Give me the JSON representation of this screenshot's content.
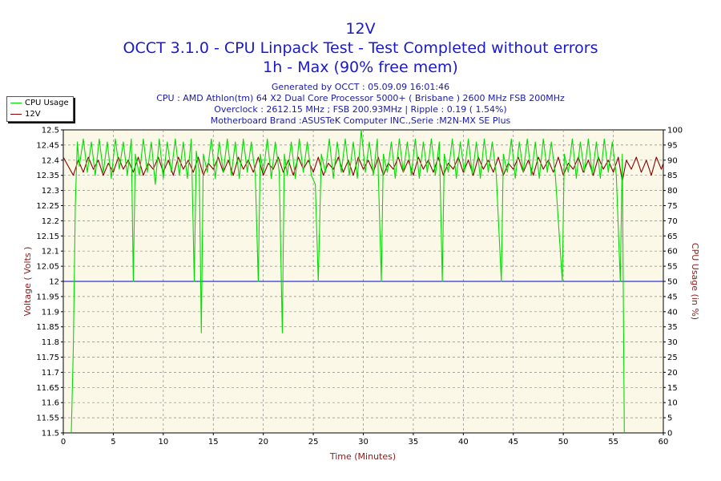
{
  "chart_data": {
    "type": "line",
    "title": "12V",
    "subtitle_lines": [
      "OCCT 3.1.0 - CPU Linpack Test - Test Completed without errors",
      "1h - Max (90% free mem)"
    ],
    "info_lines": [
      "Generated by OCCT : 05.09.09 16:01:46",
      "CPU : AMD Athlon(tm) 64 X2 Dual Core Processor 5000+ ( Brisbane ) 2600 MHz FSB 200MHz",
      "Overclock : 2612.15 MHz ; FSB 200.93MHz | Ripple : 0.19 ( 1.54%)",
      "Motherboard Brand :ASUSTeK Computer INC.,Serie :M2N-MX SE Plus"
    ],
    "xlabel": "Time (Minutes)",
    "ylabel": "Voltage ( Volts )",
    "y2label": "CPU Usage (in %)",
    "xlim": [
      0,
      60
    ],
    "ylim": [
      11.5,
      12.5
    ],
    "y2lim": [
      0,
      100
    ],
    "x_ticks": [
      0,
      5,
      10,
      15,
      20,
      25,
      30,
      35,
      40,
      45,
      50,
      55,
      60
    ],
    "y_ticks": [
      "11.5",
      "11.55",
      "11.6",
      "11.65",
      "11.7",
      "11.75",
      "11.8",
      "11.85",
      "11.9",
      "11.95",
      "12",
      "12.05",
      "12.1",
      "12.15",
      "12.2",
      "12.25",
      "12.3",
      "12.35",
      "12.4",
      "12.45",
      "12.5"
    ],
    "y2_ticks": [
      "0",
      "5",
      "10",
      "15",
      "20",
      "25",
      "30",
      "35",
      "40",
      "45",
      "50",
      "55",
      "60",
      "65",
      "70",
      "75",
      "80",
      "85",
      "90",
      "95",
      "100"
    ],
    "grid": true,
    "legend_position": "top-left",
    "reference_line": {
      "axis": "y",
      "value": 12.0
    },
    "series": [
      {
        "name": "CPU Usage",
        "axis": "right",
        "color": "#00dd00",
        "points": [
          [
            0.8,
            0
          ],
          [
            1.0,
            28
          ],
          [
            1.2,
            75
          ],
          [
            1.4,
            96
          ],
          [
            1.6,
            88
          ],
          [
            2.0,
            97
          ],
          [
            2.4,
            86
          ],
          [
            2.8,
            96
          ],
          [
            3.2,
            85
          ],
          [
            3.6,
            97
          ],
          [
            4.0,
            86
          ],
          [
            4.4,
            96
          ],
          [
            4.8,
            84
          ],
          [
            5.2,
            97
          ],
          [
            5.6,
            87
          ],
          [
            6.0,
            96
          ],
          [
            6.4,
            85
          ],
          [
            6.8,
            97
          ],
          [
            7.0,
            50
          ],
          [
            7.2,
            92
          ],
          [
            7.6,
            85
          ],
          [
            8.0,
            97
          ],
          [
            8.4,
            86
          ],
          [
            8.8,
            96
          ],
          [
            9.2,
            82
          ],
          [
            9.6,
            97
          ],
          [
            10.0,
            84
          ],
          [
            10.4,
            96
          ],
          [
            10.8,
            86
          ],
          [
            11.2,
            97
          ],
          [
            11.6,
            85
          ],
          [
            12.0,
            96
          ],
          [
            12.4,
            84
          ],
          [
            12.8,
            97
          ],
          [
            13.1,
            50
          ],
          [
            13.3,
            93
          ],
          [
            13.6,
            86
          ],
          [
            13.8,
            33
          ],
          [
            14.0,
            92
          ],
          [
            14.4,
            86
          ],
          [
            14.8,
            97
          ],
          [
            15.2,
            84
          ],
          [
            15.6,
            96
          ],
          [
            16.0,
            86
          ],
          [
            16.4,
            97
          ],
          [
            16.8,
            85
          ],
          [
            17.2,
            96
          ],
          [
            17.6,
            84
          ],
          [
            18.0,
            97
          ],
          [
            18.4,
            86
          ],
          [
            18.8,
            96
          ],
          [
            19.2,
            85
          ],
          [
            19.5,
            50
          ],
          [
            19.7,
            92
          ],
          [
            20.0,
            86
          ],
          [
            20.4,
            97
          ],
          [
            20.8,
            84
          ],
          [
            21.2,
            96
          ],
          [
            21.6,
            86
          ],
          [
            21.9,
            33
          ],
          [
            22.1,
            92
          ],
          [
            22.4,
            85
          ],
          [
            22.8,
            96
          ],
          [
            23.2,
            84
          ],
          [
            23.6,
            97
          ],
          [
            24.0,
            86
          ],
          [
            24.4,
            96
          ],
          [
            24.8,
            85
          ],
          [
            25.2,
            82
          ],
          [
            25.5,
            50
          ],
          [
            25.8,
            92
          ],
          [
            26.2,
            86
          ],
          [
            26.6,
            97
          ],
          [
            27.0,
            84
          ],
          [
            27.4,
            96
          ],
          [
            27.8,
            86
          ],
          [
            28.2,
            97
          ],
          [
            28.6,
            85
          ],
          [
            29.0,
            96
          ],
          [
            29.4,
            84
          ],
          [
            29.8,
            100
          ],
          [
            30.2,
            86
          ],
          [
            30.6,
            96
          ],
          [
            31.0,
            85
          ],
          [
            31.4,
            97
          ],
          [
            31.8,
            50
          ],
          [
            32.0,
            92
          ],
          [
            32.4,
            86
          ],
          [
            32.8,
            96
          ],
          [
            33.2,
            84
          ],
          [
            33.6,
            97
          ],
          [
            34.0,
            86
          ],
          [
            34.4,
            96
          ],
          [
            34.8,
            85
          ],
          [
            35.2,
            97
          ],
          [
            35.6,
            84
          ],
          [
            36.0,
            96
          ],
          [
            36.4,
            86
          ],
          [
            36.8,
            97
          ],
          [
            37.2,
            85
          ],
          [
            37.6,
            96
          ],
          [
            37.9,
            50
          ],
          [
            38.1,
            92
          ],
          [
            38.5,
            86
          ],
          [
            38.9,
            97
          ],
          [
            39.3,
            84
          ],
          [
            39.7,
            96
          ],
          [
            40.1,
            86
          ],
          [
            40.5,
            97
          ],
          [
            40.9,
            85
          ],
          [
            41.3,
            96
          ],
          [
            41.7,
            84
          ],
          [
            42.1,
            97
          ],
          [
            42.5,
            86
          ],
          [
            42.9,
            96
          ],
          [
            43.3,
            85
          ],
          [
            43.8,
            50
          ],
          [
            44.0,
            92
          ],
          [
            44.4,
            86
          ],
          [
            44.8,
            97
          ],
          [
            45.2,
            84
          ],
          [
            45.6,
            96
          ],
          [
            46.0,
            86
          ],
          [
            46.4,
            97
          ],
          [
            46.8,
            85
          ],
          [
            47.2,
            96
          ],
          [
            47.6,
            84
          ],
          [
            48.0,
            97
          ],
          [
            48.4,
            86
          ],
          [
            48.8,
            96
          ],
          [
            49.2,
            85
          ],
          [
            49.9,
            50
          ],
          [
            50.1,
            92
          ],
          [
            50.5,
            86
          ],
          [
            50.9,
            97
          ],
          [
            51.3,
            84
          ],
          [
            51.7,
            96
          ],
          [
            52.1,
            86
          ],
          [
            52.5,
            97
          ],
          [
            52.9,
            85
          ],
          [
            53.3,
            96
          ],
          [
            53.7,
            84
          ],
          [
            54.1,
            97
          ],
          [
            54.5,
            86
          ],
          [
            54.9,
            96
          ],
          [
            55.3,
            85
          ],
          [
            55.7,
            50
          ],
          [
            55.9,
            92
          ],
          [
            56.1,
            0
          ]
        ]
      },
      {
        "name": "12V",
        "axis": "left",
        "color": "#8b0000",
        "points": [
          [
            0,
            12.41
          ],
          [
            0.5,
            12.38
          ],
          [
            1.0,
            12.35
          ],
          [
            1.5,
            12.4
          ],
          [
            2.0,
            12.36
          ],
          [
            2.5,
            12.41
          ],
          [
            3.0,
            12.37
          ],
          [
            3.5,
            12.4
          ],
          [
            4.0,
            12.35
          ],
          [
            4.5,
            12.39
          ],
          [
            5.0,
            12.36
          ],
          [
            5.5,
            12.41
          ],
          [
            6.0,
            12.37
          ],
          [
            6.5,
            12.4
          ],
          [
            7.0,
            12.36
          ],
          [
            7.5,
            12.41
          ],
          [
            8.0,
            12.35
          ],
          [
            8.5,
            12.39
          ],
          [
            9.0,
            12.37
          ],
          [
            9.5,
            12.41
          ],
          [
            10.0,
            12.36
          ],
          [
            10.5,
            12.4
          ],
          [
            11.0,
            12.35
          ],
          [
            11.5,
            12.41
          ],
          [
            12.0,
            12.37
          ],
          [
            12.5,
            12.4
          ],
          [
            13.0,
            12.36
          ],
          [
            13.5,
            12.41
          ],
          [
            14.0,
            12.35
          ],
          [
            14.5,
            12.39
          ],
          [
            15.0,
            12.37
          ],
          [
            15.5,
            12.41
          ],
          [
            16.0,
            12.36
          ],
          [
            16.5,
            12.4
          ],
          [
            17.0,
            12.35
          ],
          [
            17.5,
            12.41
          ],
          [
            18.0,
            12.37
          ],
          [
            18.5,
            12.4
          ],
          [
            19.0,
            12.36
          ],
          [
            19.5,
            12.41
          ],
          [
            20.0,
            12.35
          ],
          [
            20.5,
            12.39
          ],
          [
            21.0,
            12.37
          ],
          [
            21.5,
            12.41
          ],
          [
            22.0,
            12.36
          ],
          [
            22.5,
            12.4
          ],
          [
            23.0,
            12.35
          ],
          [
            23.5,
            12.41
          ],
          [
            24.0,
            12.37
          ],
          [
            24.5,
            12.4
          ],
          [
            25.0,
            12.36
          ],
          [
            25.5,
            12.41
          ],
          [
            26.0,
            12.35
          ],
          [
            26.5,
            12.39
          ],
          [
            27.0,
            12.37
          ],
          [
            27.5,
            12.41
          ],
          [
            28.0,
            12.36
          ],
          [
            28.5,
            12.4
          ],
          [
            29.0,
            12.35
          ],
          [
            29.5,
            12.41
          ],
          [
            30.0,
            12.37
          ],
          [
            30.5,
            12.4
          ],
          [
            31.0,
            12.36
          ],
          [
            31.5,
            12.41
          ],
          [
            32.0,
            12.35
          ],
          [
            32.5,
            12.39
          ],
          [
            33.0,
            12.37
          ],
          [
            33.5,
            12.41
          ],
          [
            34.0,
            12.36
          ],
          [
            34.5,
            12.4
          ],
          [
            35.0,
            12.35
          ],
          [
            35.5,
            12.41
          ],
          [
            36.0,
            12.37
          ],
          [
            36.5,
            12.4
          ],
          [
            37.0,
            12.36
          ],
          [
            37.5,
            12.41
          ],
          [
            38.0,
            12.35
          ],
          [
            38.5,
            12.39
          ],
          [
            39.0,
            12.37
          ],
          [
            39.5,
            12.41
          ],
          [
            40.0,
            12.36
          ],
          [
            40.5,
            12.4
          ],
          [
            41.0,
            12.35
          ],
          [
            41.5,
            12.41
          ],
          [
            42.0,
            12.37
          ],
          [
            42.5,
            12.4
          ],
          [
            43.0,
            12.36
          ],
          [
            43.5,
            12.41
          ],
          [
            44.0,
            12.35
          ],
          [
            44.5,
            12.39
          ],
          [
            45.0,
            12.37
          ],
          [
            45.5,
            12.41
          ],
          [
            46.0,
            12.36
          ],
          [
            46.5,
            12.4
          ],
          [
            47.0,
            12.35
          ],
          [
            47.5,
            12.41
          ],
          [
            48.0,
            12.37
          ],
          [
            48.5,
            12.4
          ],
          [
            49.0,
            12.36
          ],
          [
            49.5,
            12.41
          ],
          [
            50.0,
            12.35
          ],
          [
            50.5,
            12.39
          ],
          [
            51.0,
            12.37
          ],
          [
            51.5,
            12.41
          ],
          [
            52.0,
            12.36
          ],
          [
            52.5,
            12.4
          ],
          [
            53.0,
            12.35
          ],
          [
            53.5,
            12.41
          ],
          [
            54.0,
            12.37
          ],
          [
            54.5,
            12.4
          ],
          [
            55.0,
            12.36
          ],
          [
            55.5,
            12.41
          ],
          [
            55.9,
            12.33
          ],
          [
            56.3,
            12.4
          ],
          [
            56.8,
            12.37
          ],
          [
            57.3,
            12.41
          ],
          [
            57.8,
            12.36
          ],
          [
            58.3,
            12.4
          ],
          [
            58.8,
            12.35
          ],
          [
            59.3,
            12.41
          ],
          [
            59.8,
            12.37
          ],
          [
            60.0,
            12.39
          ]
        ]
      }
    ]
  }
}
